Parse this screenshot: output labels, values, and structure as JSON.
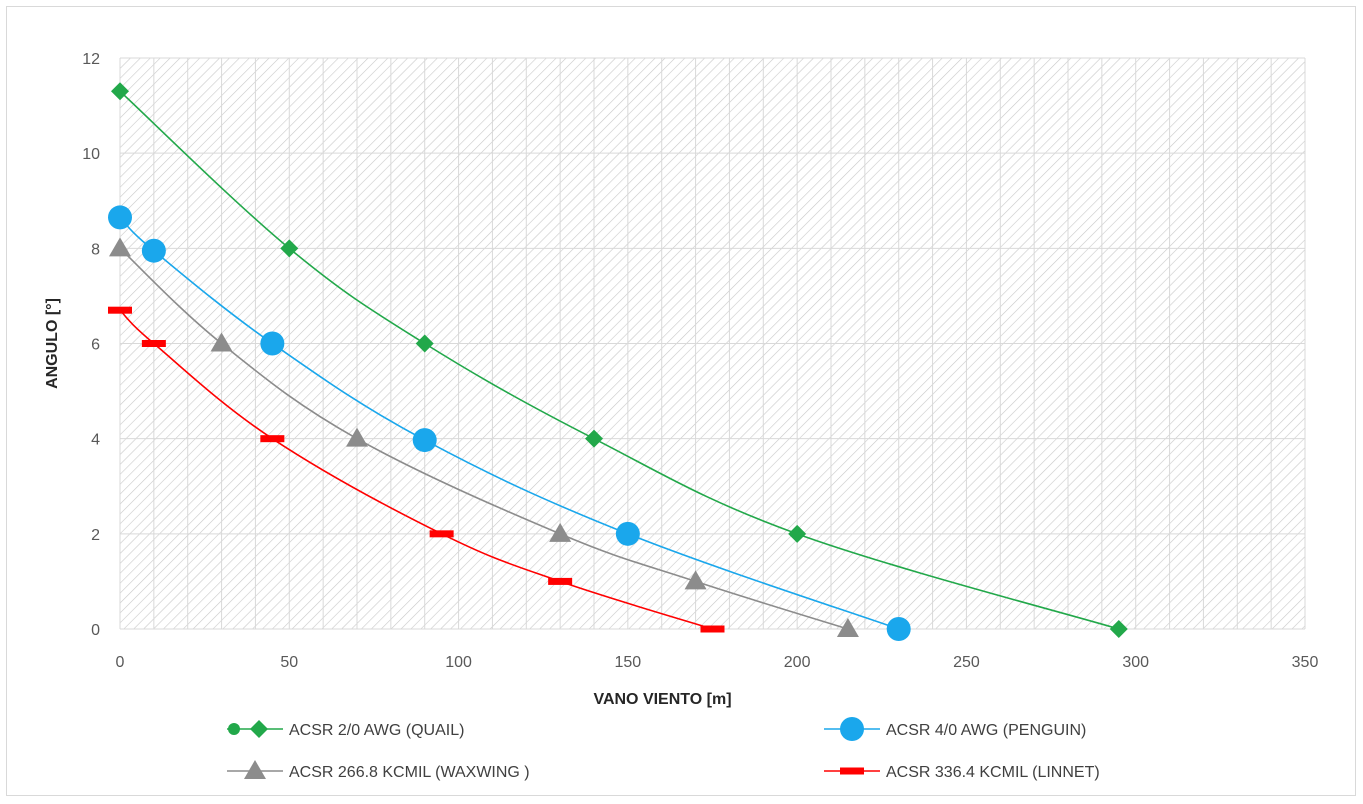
{
  "chart_data": {
    "type": "line",
    "xlabel": "VANO VIENTO [m]",
    "ylabel": "ANGULO [°]",
    "xlim": [
      0,
      350
    ],
    "ylim": [
      0,
      12
    ],
    "x_ticks": [
      "0",
      "50",
      "100",
      "150",
      "200",
      "250",
      "300",
      "350"
    ],
    "y_ticks": [
      "0",
      "2",
      "4",
      "6",
      "8",
      "10",
      "12"
    ],
    "grid": true,
    "background": "hatched",
    "legend_position": "bottom",
    "series": [
      {
        "name": "ACSR 2/0 AWG (QUAIL)",
        "color": "#22a84a",
        "marker": "diamond",
        "points": [
          [
            0,
            11.3
          ],
          [
            50,
            8.0
          ],
          [
            90,
            6.0
          ],
          [
            140,
            4.0
          ],
          [
            200,
            2.0
          ],
          [
            295,
            0.0
          ]
        ]
      },
      {
        "name": "ACSR 4/0 AWG (PENGUIN)",
        "color": "#1aa7ec",
        "marker": "circle",
        "points": [
          [
            0,
            8.65
          ],
          [
            10,
            7.95
          ],
          [
            45,
            6.0
          ],
          [
            90,
            3.97
          ],
          [
            150,
            2.0
          ],
          [
            230,
            0.0
          ]
        ]
      },
      {
        "name": "ACSR 266.8 KCMIL (WAXWING )",
        "color": "#8c8c8c",
        "marker": "triangle",
        "points": [
          [
            0,
            8.0
          ],
          [
            30,
            6.0
          ],
          [
            70,
            4.0
          ],
          [
            130,
            2.0
          ],
          [
            170,
            1.0
          ],
          [
            215,
            0.0
          ]
        ]
      },
      {
        "name": "ACSR 336.4 KCMIL (LINNET)",
        "color": "#ff0000",
        "marker": "dash",
        "points": [
          [
            0,
            6.7
          ],
          [
            10,
            6.0
          ],
          [
            45,
            4.0
          ],
          [
            95,
            2.0
          ],
          [
            130,
            1.0
          ],
          [
            175,
            0.0
          ]
        ]
      }
    ]
  }
}
